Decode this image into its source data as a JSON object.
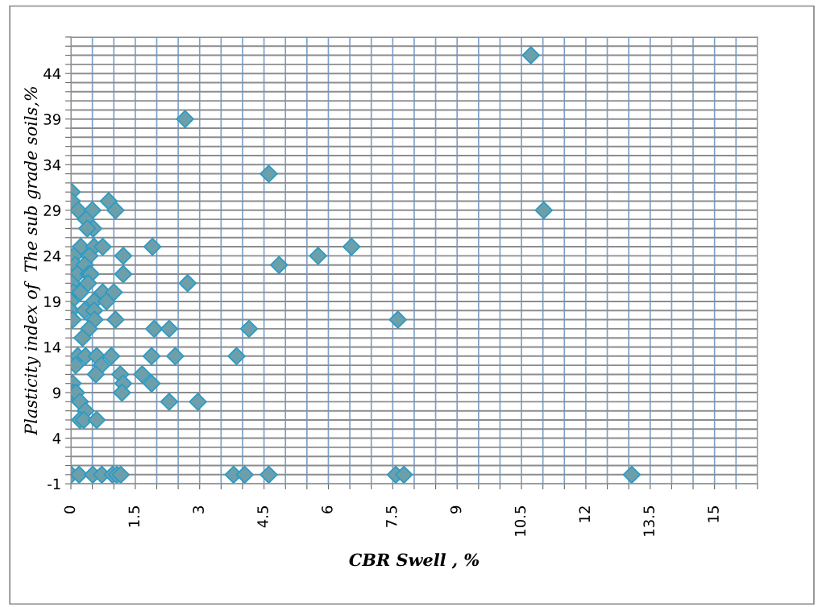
{
  "chart_data": {
    "type": "scatter",
    "xlabel": "CBR Swell , %",
    "ylabel": "Plasticity index of  The sub grade soils,%",
    "marker": "diamond",
    "grid": true,
    "legend": false,
    "xlim": [
      0,
      16
    ],
    "ylim": [
      -1,
      48
    ],
    "xticks": [
      0,
      {
        "value": 0.5,
        "label": null
      },
      {
        "value": 1,
        "label": null
      },
      1.5,
      {
        "value": 2,
        "label": null
      },
      {
        "value": 2.5,
        "label": null
      },
      3,
      {
        "value": 3.5,
        "label": null
      },
      {
        "value": 4,
        "label": null
      },
      4.5,
      {
        "value": 5,
        "label": null
      },
      {
        "value": 5.5,
        "label": null
      },
      6,
      {
        "value": 6.5,
        "label": null
      },
      {
        "value": 7,
        "label": null
      },
      7.5,
      {
        "value": 8,
        "label": null
      },
      {
        "value": 8.5,
        "label": null
      },
      9,
      {
        "value": 9.5,
        "label": null
      },
      {
        "value": 10,
        "label": null
      },
      10.5,
      {
        "value": 11,
        "label": null
      },
      {
        "value": 11.5,
        "label": null
      },
      12,
      {
        "value": 12.5,
        "label": null
      },
      {
        "value": 13,
        "label": null
      },
      13.5,
      {
        "value": 14,
        "label": null
      },
      {
        "value": 14.5,
        "label": null
      },
      15,
      {
        "value": 15.5,
        "label": null
      },
      {
        "value": 16,
        "label": null
      }
    ],
    "yticks": [
      -1,
      {
        "value": 0,
        "label": null
      },
      {
        "value": 1,
        "label": null
      },
      {
        "value": 2,
        "label": null
      },
      {
        "value": 3,
        "label": null
      },
      4,
      {
        "value": 5,
        "label": null
      },
      {
        "value": 6,
        "label": null
      },
      {
        "value": 7,
        "label": null
      },
      {
        "value": 8,
        "label": null
      },
      9,
      {
        "value": 10,
        "label": null
      },
      {
        "value": 11,
        "label": null
      },
      {
        "value": 12,
        "label": null
      },
      {
        "value": 13,
        "label": null
      },
      14,
      {
        "value": 15,
        "label": null
      },
      {
        "value": 16,
        "label": null
      },
      {
        "value": 17,
        "label": null
      },
      {
        "value": 18,
        "label": null
      },
      19,
      {
        "value": 20,
        "label": null
      },
      {
        "value": 21,
        "label": null
      },
      {
        "value": 22,
        "label": null
      },
      {
        "value": 23,
        "label": null
      },
      24,
      {
        "value": 25,
        "label": null
      },
      {
        "value": 26,
        "label": null
      },
      {
        "value": 27,
        "label": null
      },
      {
        "value": 28,
        "label": null
      },
      29,
      {
        "value": 30,
        "label": null
      },
      {
        "value": 31,
        "label": null
      },
      {
        "value": 32,
        "label": null
      },
      {
        "value": 33,
        "label": null
      },
      34,
      {
        "value": 35,
        "label": null
      },
      {
        "value": 36,
        "label": null
      },
      {
        "value": 37,
        "label": null
      },
      {
        "value": 38,
        "label": null
      },
      39,
      {
        "value": 40,
        "label": null
      },
      {
        "value": 41,
        "label": null
      },
      {
        "value": 42,
        "label": null
      },
      {
        "value": 43,
        "label": null
      },
      44,
      {
        "value": 45,
        "label": null
      },
      {
        "value": 46,
        "label": null
      },
      {
        "value": 47,
        "label": null
      },
      {
        "value": 48,
        "label": null
      }
    ],
    "series": [
      {
        "color": "#6d9fab",
        "x": [
          2.66,
          0.02,
          0.02,
          0.17,
          0.5,
          0.88,
          1.04,
          0.35,
          0.52,
          0.38,
          0.23,
          0.54,
          0.74,
          1.9,
          0.07,
          0.43,
          1.22,
          0.1,
          0.32,
          0.15,
          0.41,
          0.46,
          1.22,
          0.02,
          0.4,
          2.72,
          0.05,
          0.22,
          0.74,
          1.0,
          0,
          0.54,
          0.83,
          0,
          0.32,
          0.54,
          0.04,
          0.55,
          1.04,
          0.42,
          1.94,
          2.29,
          4.15,
          0.27,
          0.16,
          0.34,
          0.6,
          0.94,
          1.88,
          2.43,
          3.86,
          0.11,
          0.71,
          0.58,
          1.15,
          1.66,
          0.04,
          1.22,
          1.88,
          0.05,
          0.12,
          1.19,
          0.21,
          2.29,
          2.96,
          0.34,
          0.21,
          0.3,
          0.6,
          0.01,
          0.19,
          0.51,
          0.72,
          0.97,
          1.07,
          1.16,
          3.79,
          4.05,
          4.61,
          7.57,
          7.76,
          13.07,
          10.72,
          4.61,
          11.02,
          6.54,
          5.76,
          4.85,
          7.62
        ],
        "values": [
          39,
          31,
          30,
          29,
          29,
          30,
          29,
          28,
          27,
          27,
          25,
          25,
          25,
          25,
          24,
          24,
          24,
          23,
          23,
          22,
          22,
          22,
          22,
          21,
          21,
          21,
          20,
          20,
          20,
          20,
          19,
          19,
          19,
          18,
          18,
          18,
          17,
          17,
          17,
          16,
          16,
          16,
          16,
          15,
          13,
          13,
          13,
          13,
          13,
          13,
          13,
          12,
          12,
          11,
          11,
          11,
          10,
          10,
          10,
          9,
          9,
          9,
          8,
          8,
          8,
          7,
          6,
          6,
          6,
          0,
          0,
          0,
          0,
          0,
          0,
          0,
          0,
          0,
          0,
          0,
          0,
          0,
          46,
          33,
          29,
          25,
          24,
          23,
          17
        ]
      }
    ]
  }
}
